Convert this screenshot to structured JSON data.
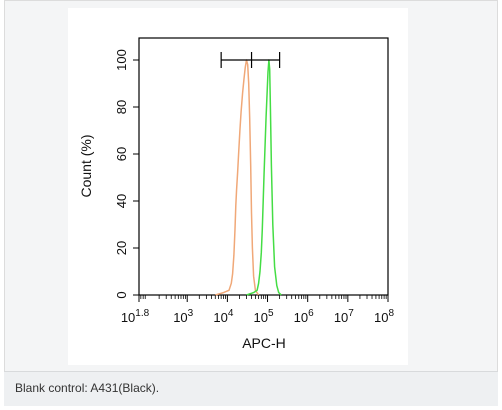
{
  "chart_data": {
    "type": "line",
    "x_scale": "log",
    "xlabel": "APC-H",
    "ylabel": "Count  (%)",
    "xlim": [
      63,
      100000000
    ],
    "ylim": [
      0,
      100
    ],
    "x_ticks": [
      {
        "base": "10",
        "exp": "1.8",
        "value": 63
      },
      {
        "base": "10",
        "exp": "3",
        "value": 1000
      },
      {
        "base": "10",
        "exp": "4",
        "value": 10000
      },
      {
        "base": "10",
        "exp": "5",
        "value": 100000
      },
      {
        "base": "10",
        "exp": "6",
        "value": 1000000
      },
      {
        "base": "10",
        "exp": "7",
        "value": 10000000
      },
      {
        "base": "10",
        "exp": "8",
        "value": 100000000
      }
    ],
    "y_ticks": [
      "0",
      "20",
      "40",
      "60",
      "80",
      "100"
    ],
    "gate": {
      "x_start": 7000,
      "x_mid": 40000,
      "x_end": 200000,
      "y": 100
    },
    "series": [
      {
        "color": "#f0a878",
        "x": [
          5000,
          8000,
          11000,
          12500,
          13500,
          14500,
          15500,
          16200,
          17000,
          18000,
          19000,
          20500,
          22000,
          24000,
          26000,
          28000,
          30000,
          32000,
          34000,
          36000,
          38000,
          40000,
          42000,
          45000,
          50000,
          60000
        ],
        "y": [
          0,
          1,
          2,
          5,
          9,
          17,
          28,
          38,
          45,
          52,
          60,
          70,
          78,
          86,
          92,
          97,
          100,
          98,
          90,
          75,
          55,
          35,
          20,
          8,
          2,
          0
        ]
      },
      {
        "color": "#44dd44",
        "x": [
          30000,
          45000,
          55000,
          60000,
          65000,
          70000,
          74000,
          78000,
          82000,
          87000,
          92000,
          98000,
          103000,
          108000,
          113000,
          118000,
          125000,
          135000,
          150000,
          170000,
          190000,
          220000
        ],
        "y": [
          0,
          1,
          2,
          5,
          10,
          18,
          28,
          40,
          52,
          64,
          76,
          87,
          95,
          100,
          96,
          80,
          55,
          30,
          12,
          4,
          1,
          0
        ]
      }
    ]
  },
  "caption": "Blank control: A431(Black)."
}
